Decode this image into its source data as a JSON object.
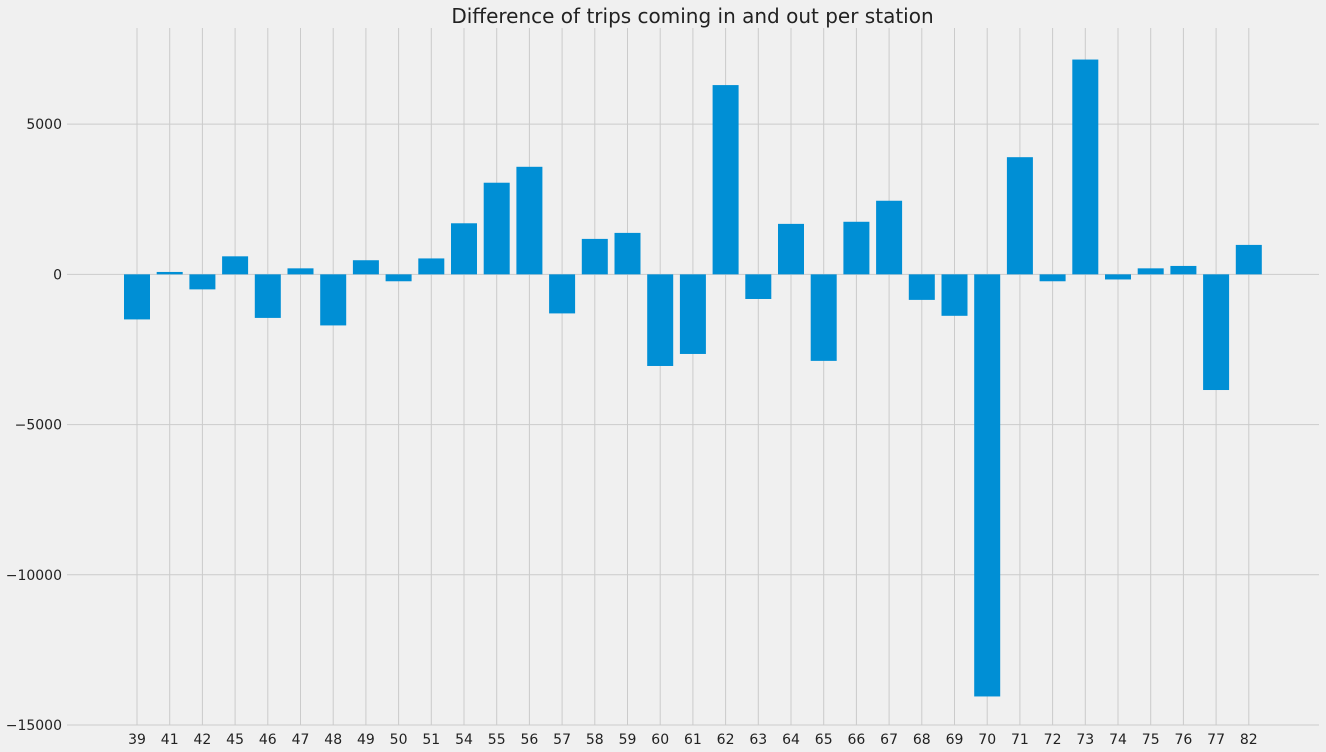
{
  "chart_data": {
    "type": "bar",
    "title": "Difference of trips coming in and out per station",
    "xlabel": "",
    "ylabel": "",
    "categories": [
      "39",
      "41",
      "42",
      "45",
      "46",
      "47",
      "48",
      "49",
      "50",
      "51",
      "54",
      "55",
      "56",
      "57",
      "58",
      "59",
      "60",
      "61",
      "62",
      "63",
      "64",
      "65",
      "66",
      "67",
      "68",
      "69",
      "70",
      "71",
      "72",
      "73",
      "74",
      "75",
      "76",
      "77",
      "82"
    ],
    "values": [
      -1500,
      80,
      -500,
      600,
      -1450,
      200,
      -1700,
      470,
      -230,
      530,
      1700,
      3050,
      3580,
      -1300,
      1180,
      1380,
      -3050,
      -2650,
      6300,
      -820,
      1680,
      -2880,
      1750,
      2450,
      -850,
      -1380,
      -14050,
      3900,
      -230,
      7150,
      -170,
      200,
      280,
      -3850,
      980
    ],
    "ylim": [
      -15000,
      8200
    ],
    "yticks": [
      -15000,
      -10000,
      -5000,
      0,
      5000
    ],
    "ytick_labels": [
      "−15000",
      "−10000",
      "−5000",
      "0",
      "5000"
    ],
    "bar_color": "#008fd5",
    "background_color": "#f0f0f0",
    "grid_color": "#cbcbcb",
    "grid": true
  }
}
